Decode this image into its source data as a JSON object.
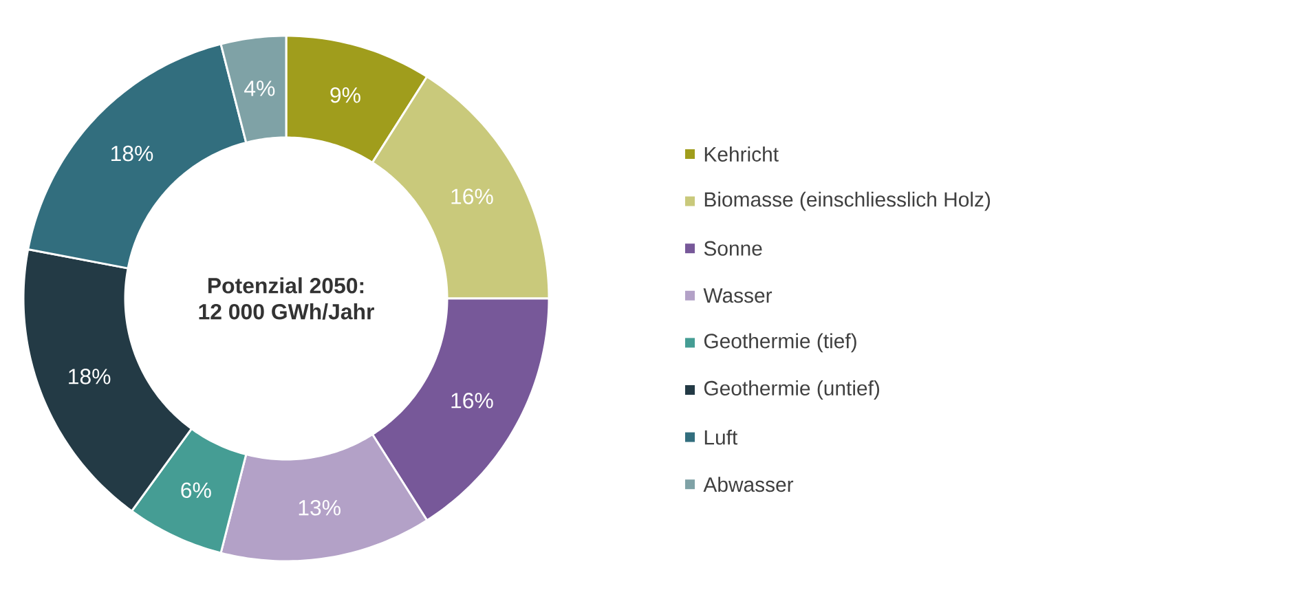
{
  "chart_data": {
    "type": "donut",
    "title": "Potenzial 2050:",
    "subtitle": "12 000 GWh/Jahr",
    "categories": [
      "Kehricht",
      "Biomasse (einschliesslich Holz)",
      "Sonne",
      "Wasser",
      "Geothermie (tief)",
      "Geothermie (untief)",
      "Luft",
      "Abwasser"
    ],
    "values": [
      9,
      16,
      16,
      13,
      6,
      18,
      18,
      4
    ],
    "value_labels": [
      "9%",
      "16%",
      "16%",
      "13%",
      "6%",
      "18%",
      "18%",
      "4%"
    ],
    "colors": [
      "#a09d1c",
      "#c9c97b",
      "#775899",
      "#b3a1c7",
      "#459d94",
      "#233a45",
      "#326e7e",
      "#7fa2a6"
    ],
    "legend": "right"
  }
}
